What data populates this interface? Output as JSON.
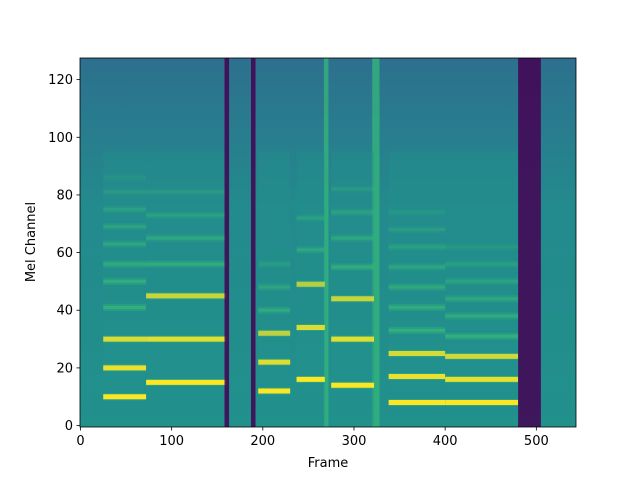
{
  "chart_data": {
    "type": "heatmap",
    "xlabel": "Frame",
    "ylabel": "Mel Channel",
    "xlim": [
      -0.5,
      543.5
    ],
    "ylim": [
      -0.5,
      127.5
    ],
    "xticks": [
      0,
      100,
      200,
      300,
      400,
      500
    ],
    "yticks": [
      0,
      20,
      40,
      60,
      80,
      100,
      120
    ],
    "colormap": [
      "#440154",
      "#31688e",
      "#21918c",
      "#35b779",
      "#fde725"
    ],
    "segments": [
      {
        "x": [
          25,
          72
        ],
        "bands": [
          10,
          20,
          30,
          41,
          50,
          56,
          63,
          69,
          75,
          81,
          86
        ]
      },
      {
        "x": [
          72,
          160
        ],
        "bands": [
          15,
          30,
          45,
          56,
          65,
          73,
          81
        ]
      },
      {
        "x": [
          195,
          230
        ],
        "bands": [
          12,
          22,
          32,
          40,
          48,
          56
        ]
      },
      {
        "x": [
          237,
          268
        ],
        "bands": [
          16,
          34,
          49,
          61,
          72
        ]
      },
      {
        "x": [
          275,
          322
        ],
        "bands": [
          14,
          30,
          44,
          55,
          65,
          74,
          82
        ]
      },
      {
        "x": [
          338,
          400
        ],
        "bands": [
          8,
          17,
          25,
          33,
          41,
          48,
          55,
          62,
          68,
          74
        ]
      },
      {
        "x": [
          400,
          480
        ],
        "bands": [
          8,
          16,
          24,
          31,
          38,
          44,
          50,
          56,
          62
        ]
      }
    ],
    "dark_regions": [
      [
        158,
        163
      ],
      [
        187,
        192
      ],
      [
        480,
        505
      ]
    ],
    "bright_regions": [
      [
        267,
        272
      ],
      [
        320,
        328
      ]
    ]
  }
}
